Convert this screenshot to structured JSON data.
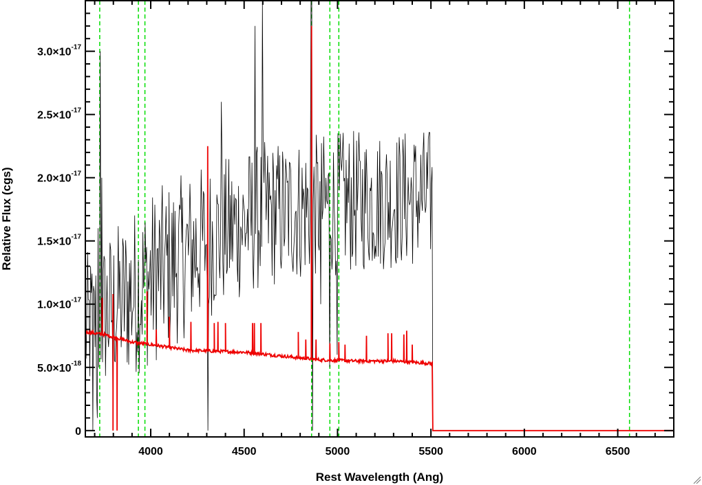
{
  "chart_data": {
    "type": "line",
    "title": "",
    "xlabel": "Rest Wavelength (Ang)",
    "ylabel": "Relative Flux (cgs)",
    "xlim": [
      3650,
      6800
    ],
    "ylim": [
      -5e-19,
      3.4e-17
    ],
    "grid": false,
    "x_ticks": [
      4000,
      4500,
      5000,
      5500,
      6000,
      6500
    ],
    "x_tick_labels": [
      "4000",
      "4500",
      "5000",
      "5500",
      "6000",
      "6500"
    ],
    "y_ticks": [
      {
        "value": 0,
        "mantissa": "0",
        "exponent": ""
      },
      {
        "value": 5e-18,
        "mantissa": "5.0×10",
        "exponent": "-18"
      },
      {
        "value": 1e-17,
        "mantissa": "1.0×10",
        "exponent": "-17"
      },
      {
        "value": 1.5e-17,
        "mantissa": "1.5×10",
        "exponent": "-17"
      },
      {
        "value": 2e-17,
        "mantissa": "2.0×10",
        "exponent": "-17"
      },
      {
        "value": 2.5e-17,
        "mantissa": "2.5×10",
        "exponent": "-17"
      },
      {
        "value": 3e-17,
        "mantissa": "3.0×10",
        "exponent": "-17"
      }
    ],
    "reference_lines": {
      "color": "#00dd00",
      "style": "dashed",
      "x": [
        3727,
        3934,
        3969,
        4861,
        4959,
        5007,
        6563
      ]
    },
    "series": [
      {
        "key": "observed",
        "color": "#000000",
        "x_start": 3650,
        "x_end": 5508,
        "step": 4,
        "base": [
          [
            3650,
            8e-18
          ],
          [
            4000,
            1.2e-17
          ],
          [
            4300,
            1.5e-17
          ],
          [
            4600,
            1.7e-17
          ],
          [
            5000,
            1.8e-17
          ],
          [
            5508,
            1.85e-17
          ]
        ],
        "amplitude": [
          [
            3650,
            6e-18
          ],
          [
            4000,
            7e-18
          ],
          [
            4400,
            6e-18
          ],
          [
            5508,
            5.5e-18
          ]
        ],
        "spikes": [
          [
            3690,
            0
          ],
          [
            3700,
            1.1e-17
          ],
          [
            3710,
            3e-18
          ],
          [
            3715,
            1e-18
          ],
          [
            3720,
            1.6e-17
          ],
          [
            3730,
            3e-17
          ],
          [
            3738,
            2e-17
          ],
          [
            3800,
            1.1e-18
          ],
          [
            3840,
            1.1e-17
          ],
          [
            4305,
            1.2e-17
          ],
          [
            4307,
            0
          ],
          [
            4313,
            1e-17
          ],
          [
            4380,
            2.6e-17
          ],
          [
            4560,
            3.2e-17
          ],
          [
            4600,
            3.8e-17
          ],
          [
            4858,
            4.2e-17
          ],
          [
            4862,
            3.7e-17
          ],
          [
            4867,
            0
          ],
          [
            4910,
            1e-17
          ],
          [
            4960,
            5e-18
          ],
          [
            5000,
            6e-18
          ]
        ],
        "drop_to": 0,
        "drop_to_x": 5510,
        "values_are_illustrative_noise": true
      },
      {
        "key": "model",
        "color": "#ee0000",
        "x_start": 3650,
        "x_end": 5508,
        "continuum": [
          [
            3650,
            7.8e-18
          ],
          [
            3750,
            7.6e-18
          ],
          [
            3900,
            7e-18
          ],
          [
            4000,
            6.8e-18
          ],
          [
            4200,
            6.35e-18
          ],
          [
            4500,
            6.2e-18
          ],
          [
            4700,
            5.9e-18
          ],
          [
            4900,
            5.6e-18
          ],
          [
            5100,
            5.5e-18
          ],
          [
            5300,
            5.5e-18
          ],
          [
            5508,
            5.3e-18
          ]
        ],
        "dips": [
          [
            3820,
            0
          ],
          [
            3798,
            0
          ]
        ],
        "emission_lines": [
          [
            3740,
            1.05e-17
          ],
          [
            3798,
            1.08e-17
          ],
          [
            3980,
            1.1e-17
          ],
          [
            4030,
            8e-18
          ],
          [
            4100,
            9e-18
          ],
          [
            4215,
            8.6e-18
          ],
          [
            4305,
            2.25e-17
          ],
          [
            4340,
            8.5e-18
          ],
          [
            4360,
            8.6e-18
          ],
          [
            4400,
            8.5e-18
          ],
          [
            4545,
            8.5e-18
          ],
          [
            4555,
            8.5e-18
          ],
          [
            4590,
            8.5e-18
          ],
          [
            4790,
            7.8e-18
          ],
          [
            4830,
            7.2e-18
          ],
          [
            4861,
            3.2e-17
          ],
          [
            4885,
            7.2e-18
          ],
          [
            4959,
            6.9e-18
          ],
          [
            5007,
            7e-18
          ],
          [
            5040,
            6.8e-18
          ],
          [
            5155,
            7.5e-18
          ],
          [
            5270,
            7.7e-18
          ],
          [
            5290,
            7.7e-18
          ],
          [
            5355,
            7.6e-18
          ],
          [
            5370,
            7.9e-18
          ],
          [
            5400,
            6.8e-18
          ]
        ],
        "drop_to": 0,
        "drop_to_x": 6800
      }
    ]
  }
}
